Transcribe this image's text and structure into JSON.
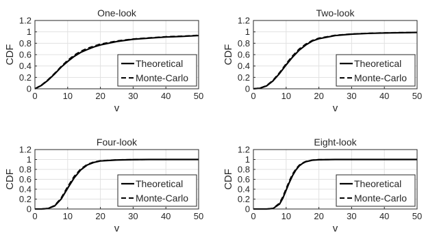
{
  "chart_data": [
    {
      "type": "line",
      "title": "One-look",
      "xlabel": "v",
      "ylabel": "CDF",
      "xlim": [
        0,
        50
      ],
      "ylim": [
        0,
        1.2
      ],
      "xticks": [
        "0",
        "10",
        "20",
        "30",
        "40",
        "50"
      ],
      "yticks": [
        "0",
        "0.2",
        "0.4",
        "0.6",
        "0.8",
        "1",
        "1.2"
      ],
      "grid": true,
      "legend_position": "bottom-right",
      "series": [
        {
          "name": "Theoretical",
          "style": "solid",
          "x": [
            0,
            2,
            4,
            6,
            8,
            10,
            12,
            14,
            16,
            18,
            20,
            25,
            30,
            35,
            40,
            45,
            50
          ],
          "y": [
            0,
            0.06,
            0.15,
            0.26,
            0.38,
            0.48,
            0.57,
            0.64,
            0.69,
            0.735,
            0.77,
            0.83,
            0.87,
            0.89,
            0.91,
            0.92,
            0.935
          ]
        },
        {
          "name": "Monte-Carlo",
          "style": "dashed",
          "x": [
            0,
            2,
            4,
            6,
            8,
            10,
            12,
            14,
            16,
            18,
            20,
            25,
            30,
            35,
            40,
            45,
            50
          ],
          "y": [
            0,
            0.065,
            0.16,
            0.27,
            0.39,
            0.5,
            0.59,
            0.66,
            0.71,
            0.75,
            0.785,
            0.84,
            0.875,
            0.895,
            0.915,
            0.925,
            0.94
          ]
        }
      ]
    },
    {
      "type": "line",
      "title": "Two-look",
      "xlabel": "v",
      "ylabel": "CDF",
      "xlim": [
        0,
        50
      ],
      "ylim": [
        0,
        1.2
      ],
      "xticks": [
        "0",
        "10",
        "20",
        "30",
        "40",
        "50"
      ],
      "yticks": [
        "0",
        "0.2",
        "0.4",
        "0.6",
        "0.8",
        "1",
        "1.2"
      ],
      "grid": true,
      "legend_position": "bottom-right",
      "series": [
        {
          "name": "Theoretical",
          "style": "solid",
          "x": [
            0,
            2,
            4,
            6,
            8,
            10,
            12,
            14,
            16,
            18,
            20,
            25,
            30,
            35,
            40,
            45,
            50
          ],
          "y": [
            0,
            0.01,
            0.05,
            0.14,
            0.27,
            0.42,
            0.56,
            0.68,
            0.77,
            0.84,
            0.88,
            0.935,
            0.96,
            0.973,
            0.98,
            0.985,
            0.99
          ]
        },
        {
          "name": "Monte-Carlo",
          "style": "dashed",
          "x": [
            0,
            2,
            4,
            6,
            8,
            10,
            12,
            14,
            16,
            18,
            20,
            25,
            30,
            35,
            40,
            45,
            50
          ],
          "y": [
            0,
            0.012,
            0.055,
            0.15,
            0.285,
            0.44,
            0.58,
            0.7,
            0.785,
            0.85,
            0.89,
            0.94,
            0.963,
            0.975,
            0.982,
            0.987,
            0.99
          ]
        }
      ]
    },
    {
      "type": "line",
      "title": "Four-look",
      "xlabel": "v",
      "ylabel": "CDF",
      "xlim": [
        0,
        50
      ],
      "ylim": [
        0,
        1.2
      ],
      "xticks": [
        "0",
        "10",
        "20",
        "30",
        "40",
        "50"
      ],
      "yticks": [
        "0",
        "0.2",
        "0.4",
        "0.6",
        "0.8",
        "1",
        "1.2"
      ],
      "grid": true,
      "legend_position": "bottom-right",
      "series": [
        {
          "name": "Theoretical",
          "style": "solid",
          "x": [
            0,
            2,
            4,
            6,
            8,
            10,
            12,
            14,
            16,
            18,
            20,
            25,
            30,
            35,
            40,
            45,
            50
          ],
          "y": [
            0,
            0.0,
            0.01,
            0.06,
            0.2,
            0.42,
            0.63,
            0.79,
            0.89,
            0.94,
            0.97,
            0.99,
            0.997,
            1.0,
            1.0,
            1.0,
            1.0
          ]
        },
        {
          "name": "Monte-Carlo",
          "style": "dashed",
          "x": [
            0,
            2,
            4,
            6,
            8,
            10,
            12,
            14,
            16,
            18,
            20,
            25,
            30,
            35,
            40,
            45,
            50
          ],
          "y": [
            0,
            0.0,
            0.012,
            0.07,
            0.22,
            0.45,
            0.66,
            0.81,
            0.9,
            0.95,
            0.975,
            0.992,
            0.998,
            1.0,
            1.0,
            1.0,
            1.0
          ]
        }
      ]
    },
    {
      "type": "line",
      "title": "Eight-look",
      "xlabel": "v",
      "ylabel": "CDF",
      "xlim": [
        0,
        50
      ],
      "ylim": [
        0,
        1.2
      ],
      "xticks": [
        "0",
        "10",
        "20",
        "30",
        "40",
        "50"
      ],
      "yticks": [
        "0",
        "0.2",
        "0.4",
        "0.6",
        "0.8",
        "1",
        "1.2"
      ],
      "grid": true,
      "legend_position": "bottom-right",
      "series": [
        {
          "name": "Theoretical",
          "style": "solid",
          "x": [
            0,
            2,
            4,
            6,
            8,
            9,
            10,
            11,
            12,
            13,
            14,
            15,
            16,
            18,
            20,
            25,
            30,
            40,
            50
          ],
          "y": [
            0,
            0.0,
            0.0,
            0.01,
            0.1,
            0.22,
            0.38,
            0.54,
            0.68,
            0.79,
            0.87,
            0.92,
            0.955,
            0.985,
            0.995,
            1.0,
            1.0,
            1.0,
            1.0
          ]
        },
        {
          "name": "Monte-Carlo",
          "style": "dashed",
          "x": [
            0,
            2,
            4,
            6,
            8,
            9,
            10,
            11,
            12,
            13,
            14,
            15,
            16,
            18,
            20,
            25,
            30,
            40,
            50
          ],
          "y": [
            0,
            0.0,
            0.0,
            0.012,
            0.12,
            0.25,
            0.41,
            0.57,
            0.71,
            0.81,
            0.885,
            0.93,
            0.96,
            0.988,
            0.996,
            1.0,
            1.0,
            1.0,
            1.0
          ]
        }
      ]
    }
  ]
}
